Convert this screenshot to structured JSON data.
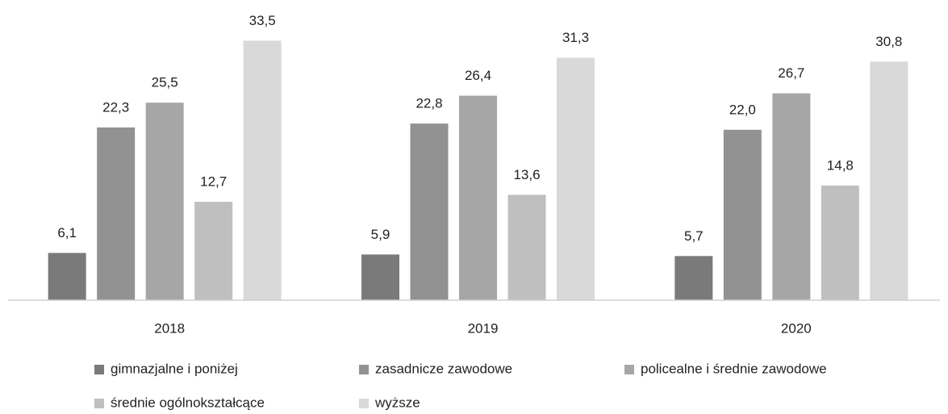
{
  "chart_data": {
    "type": "bar",
    "categories": [
      "2018",
      "2019",
      "2020"
    ],
    "series": [
      {
        "name": "gimnazjalne i poniżej",
        "color": "#7a7a7a",
        "values": [
          6.1,
          5.9,
          5.7
        ],
        "value_labels": [
          "6,1",
          "5,9",
          "5,7"
        ]
      },
      {
        "name": "zasadnicze zawodowe",
        "color": "#929292",
        "values": [
          22.3,
          22.8,
          22.0
        ],
        "value_labels": [
          "22,3",
          "22,8",
          "22,0"
        ]
      },
      {
        "name": "policealne i średnie zawodowe",
        "color": "#a6a6a6",
        "values": [
          25.5,
          26.4,
          26.7
        ],
        "value_labels": [
          "25,5",
          "26,4",
          "26,7"
        ]
      },
      {
        "name": "średnie ogólnokształcące",
        "color": "#bfbfbf",
        "values": [
          12.7,
          13.6,
          14.8
        ],
        "value_labels": [
          "12,7",
          "13,6",
          "14,8"
        ]
      },
      {
        "name": "wyższe",
        "color": "#d9d9d9",
        "values": [
          33.5,
          31.3,
          30.8
        ],
        "value_labels": [
          "33,5",
          "31,3",
          "30,8"
        ]
      }
    ],
    "ylim": [
      0,
      35
    ],
    "legend": "bottom"
  }
}
